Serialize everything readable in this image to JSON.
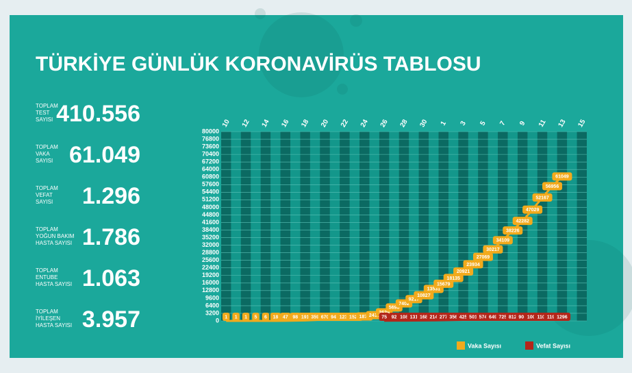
{
  "title": "TÜRKİYE GÜNLÜK KORONAVİRÜS TABLOSU",
  "stats": [
    {
      "label": [
        "TOPLAM",
        "TEST",
        "SAYISI"
      ],
      "value": "410.556"
    },
    {
      "label": [
        "TOPLAM",
        "VAKA",
        "SAYISI"
      ],
      "value": "61.049"
    },
    {
      "label": [
        "TOPLAM",
        "VEFAT",
        "SAYISI"
      ],
      "value": "1.296"
    },
    {
      "label": [
        "TOPLAM",
        "YOĞUN BAKIM",
        "HASTA SAYISI"
      ],
      "value": "1.786"
    },
    {
      "label": [
        "TOPLAM",
        "ENTUBE",
        "HASTA SAYISI"
      ],
      "value": "1.063"
    },
    {
      "label": [
        "TOPLAM",
        "İYİLEŞEN",
        "HASTA SAYISI"
      ],
      "value": "3.957"
    }
  ],
  "chart_data": {
    "type": "line",
    "categories": [
      "10",
      null,
      "12",
      null,
      "14",
      null,
      "16",
      null,
      "18",
      null,
      "20",
      null,
      "22",
      null,
      "24",
      null,
      "26",
      null,
      "28",
      null,
      "30",
      null,
      "1",
      null,
      "3",
      null,
      "5",
      null,
      "7",
      null,
      "9",
      null,
      "11",
      null,
      "13",
      null,
      "15"
    ],
    "series": [
      {
        "name": "Vaka Sayısı",
        "color": "#f2aa1c",
        "values": [
          1,
          1,
          1,
          5,
          6,
          18,
          47,
          98,
          191,
          359,
          670,
          947,
          1236,
          1529,
          1872,
          2433,
          3629,
          5698,
          7402,
          9217,
          10827,
          13531,
          15679,
          18135,
          20921,
          23934,
          27069,
          30217,
          34109,
          38226,
          42282,
          47029,
          52167,
          56956,
          61049,
          null,
          null
        ]
      },
      {
        "name": "Vefat Sayısı",
        "color": "#b3261a",
        "values": [
          null,
          null,
          null,
          null,
          null,
          null,
          null,
          null,
          null,
          null,
          null,
          null,
          null,
          null,
          null,
          null,
          75,
          92,
          108,
          131,
          168,
          214,
          277,
          356,
          425,
          501,
          574,
          649,
          725,
          812,
          908,
          1006,
          1101,
          1198,
          1296,
          null,
          null
        ]
      }
    ],
    "ylim": [
      0,
      80000
    ],
    "yticks": [
      0,
      3200,
      6400,
      9600,
      12800,
      16000,
      19200,
      22400,
      25600,
      28800,
      32000,
      35200,
      38400,
      41600,
      44800,
      48000,
      51200,
      54400,
      57600,
      60800,
      64000,
      67200,
      70400,
      73600,
      76800,
      80000
    ],
    "grid": true
  }
}
